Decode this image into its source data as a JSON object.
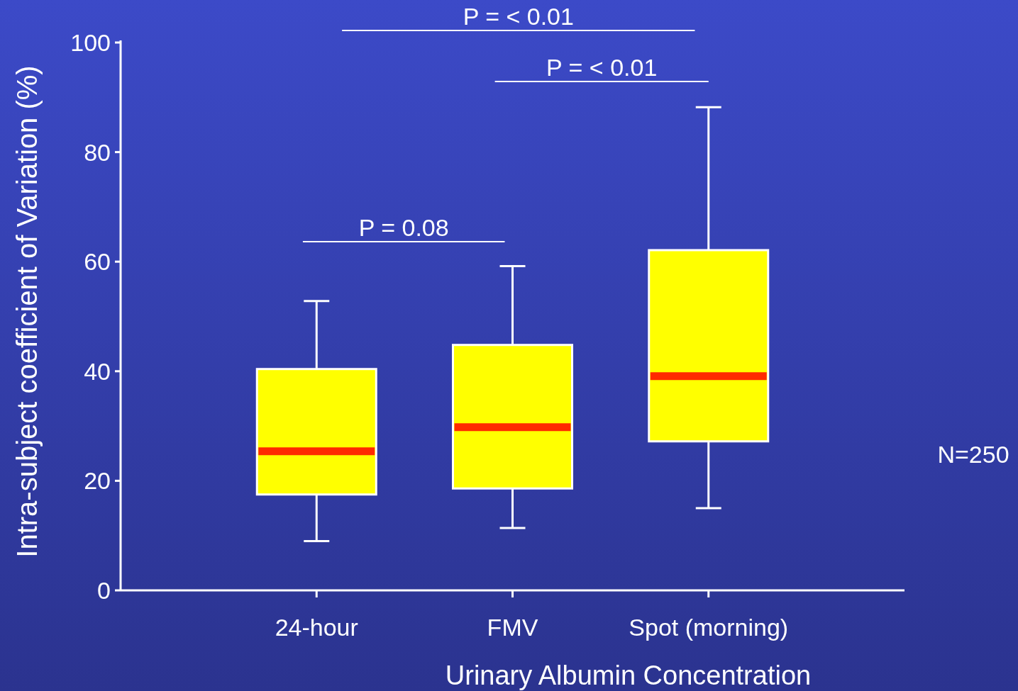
{
  "chart_data": {
    "type": "box",
    "xlabel": "Urinary Albumin Concentration",
    "ylabel": "Intra-subject coefficient of Variation (%)",
    "categories": [
      "24-hour",
      "FMV",
      "Spot (morning)"
    ],
    "series": [
      {
        "color": "#ffff00",
        "boxes": [
          {
            "low": 9,
            "q1": 17.5,
            "median": 25.4,
            "q3": 40.4,
            "high": 52.8
          },
          {
            "low": 11.4,
            "q1": 18.6,
            "median": 29.8,
            "q3": 44.8,
            "high": 59.2
          },
          {
            "low": 15,
            "q1": 27.2,
            "median": 39.1,
            "q3": 62.1,
            "high": 88.2
          }
        ]
      }
    ],
    "ylim": [
      0,
      100
    ],
    "yticks": [
      0,
      20,
      40,
      60,
      80,
      100
    ],
    "annotations": [
      "P = < 0.01",
      "P = < 0.01",
      "P = 0.08",
      "N=250"
    ]
  }
}
